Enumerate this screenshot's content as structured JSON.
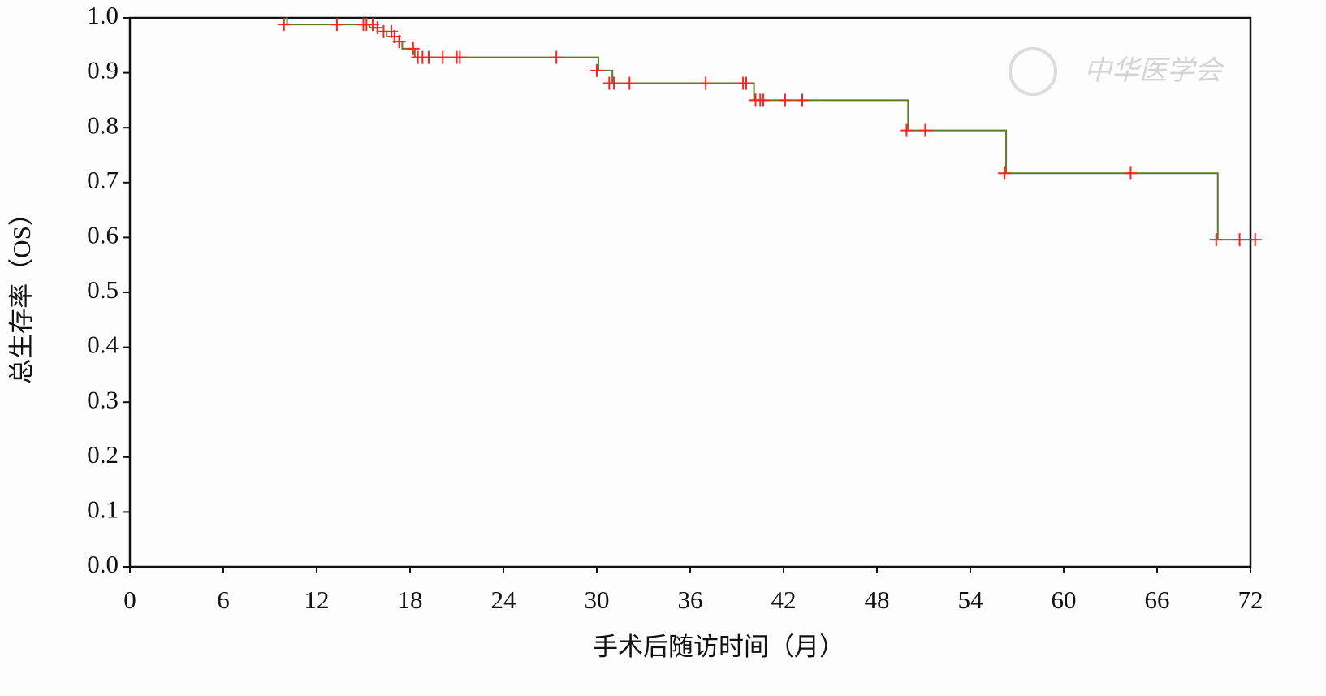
{
  "chart_data": {
    "type": "step",
    "xlabel": "手术后随访时间（月）",
    "ylabel": "总生存率（OS）",
    "watermark": "中华医学会",
    "xlim": [
      0,
      72
    ],
    "ylim": [
      0,
      1
    ],
    "xticks": [
      0,
      6,
      12,
      18,
      24,
      30,
      36,
      42,
      48,
      54,
      60,
      66,
      72
    ],
    "yticks": [
      {
        "value": 0,
        "label": "0.0"
      },
      0.1,
      0.2,
      0.3,
      0.4,
      0.5,
      0.6,
      0.7,
      0.8,
      0.9,
      {
        "value": 1,
        "label": "1.0"
      }
    ],
    "series": [
      {
        "color": "#5b7a2b",
        "x": [
          10,
          10.1,
          15.4,
          15.9,
          16.5,
          17.0,
          17.5,
          18.3,
          30.1,
          31.0,
          40.1,
          50.0,
          56.3,
          69.9,
          72.4
        ],
        "values": [
          1.0,
          0.988,
          0.982,
          0.975,
          0.966,
          0.957,
          0.944,
          0.928,
          0.904,
          0.881,
          0.85,
          0.795,
          0.717,
          0.596,
          0.596
        ]
      },
      {
        "color": "#ff2222",
        "marker": "+",
        "x": [
          9.9,
          13.3,
          15.0,
          15.2,
          15.6,
          15.9,
          16.3,
          16.8,
          17.0,
          17.3,
          18.2,
          18.5,
          18.8,
          19.2,
          20.1,
          21.0,
          21.2,
          27.4,
          30.0,
          30.8,
          31.1,
          32.1,
          37.0,
          39.4,
          39.6,
          40.2,
          40.5,
          40.7,
          42.1,
          43.2,
          49.9,
          51.1,
          56.2,
          64.3,
          69.8,
          71.3,
          72.3
        ],
        "values": [
          0.988,
          0.988,
          0.988,
          0.988,
          0.988,
          0.982,
          0.975,
          0.975,
          0.966,
          0.957,
          0.944,
          0.928,
          0.928,
          0.928,
          0.928,
          0.928,
          0.928,
          0.928,
          0.904,
          0.881,
          0.881,
          0.881,
          0.881,
          0.881,
          0.881,
          0.85,
          0.85,
          0.85,
          0.85,
          0.85,
          0.795,
          0.795,
          0.717,
          0.717,
          0.596,
          0.596,
          0.596
        ]
      }
    ]
  }
}
